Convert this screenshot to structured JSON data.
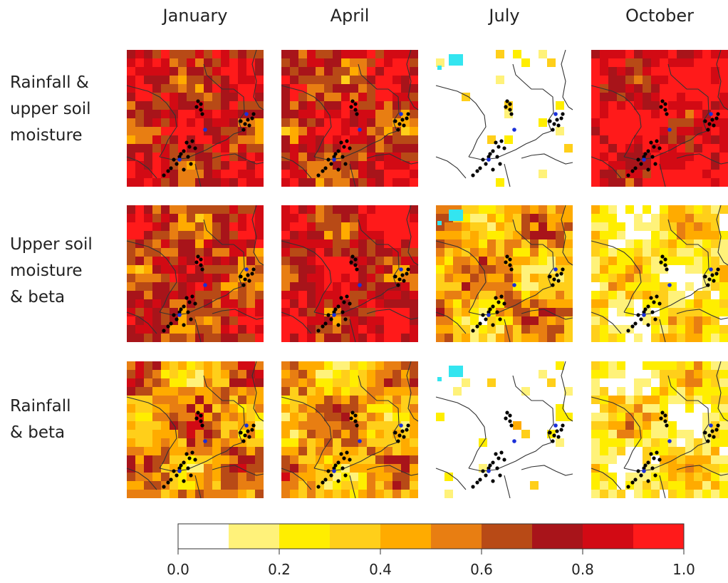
{
  "chart_data": {
    "type": "heatmap",
    "description_columns": [
      "January",
      "April",
      "July",
      "October"
    ],
    "columns": [
      "January",
      "April",
      "July",
      "October"
    ],
    "rows": [
      {
        "lines": [
          "Rainfall &",
          "upper soil",
          "moisture"
        ]
      },
      {
        "lines": [
          "Upper soil",
          "moisture",
          "& beta"
        ]
      },
      {
        "lines": [
          "Rainfall",
          "& beta"
        ]
      }
    ],
    "panel_mean_values": [
      [
        0.78,
        0.74,
        0.08,
        0.9
      ],
      [
        0.7,
        0.8,
        0.45,
        0.25
      ],
      [
        0.5,
        0.45,
        0.03,
        0.25
      ]
    ],
    "colorbar": {
      "range": [
        0.0,
        1.0
      ],
      "bins": [
        0.0,
        0.1,
        0.2,
        0.3,
        0.4,
        0.5,
        0.6,
        0.7,
        0.8,
        0.9,
        1.0
      ],
      "colors": [
        "#ffffff",
        "#fff27a",
        "#ffee00",
        "#ffcf1a",
        "#ffab00",
        "#e87e12",
        "#b84a16",
        "#a8141a",
        "#d20a14",
        "#ff1a1a"
      ],
      "tick_values": [
        0.0,
        0.2,
        0.4,
        0.6,
        0.8,
        1.0
      ],
      "tick_labels": [
        "0.0",
        "0.2",
        "0.4",
        "0.6",
        "0.8",
        "1.0"
      ]
    },
    "grid": false,
    "legend": "bottom"
  }
}
